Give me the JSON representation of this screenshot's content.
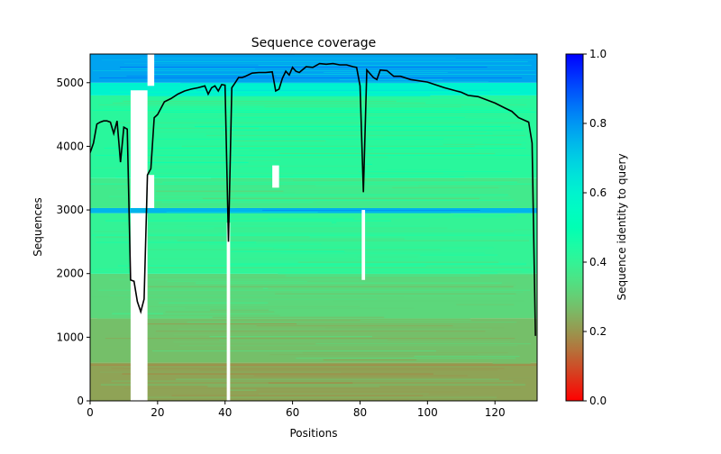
{
  "chart_data": {
    "type": "heatmap",
    "title": "Sequence coverage",
    "xlabel": "Positions",
    "ylabel": "Sequences",
    "xlim": [
      0,
      132.5
    ],
    "ylim": [
      0,
      5450
    ],
    "xticks": [
      0,
      20,
      40,
      60,
      80,
      100,
      120
    ],
    "yticks": [
      0,
      1000,
      2000,
      3000,
      4000,
      5000
    ],
    "colorbar": {
      "label": "Sequence identity to query",
      "range": [
        0,
        1
      ],
      "ticks": [
        "0.0",
        "0.2",
        "0.4",
        "0.6",
        "0.8",
        "1.0"
      ],
      "colormap": "rainbow_r"
    },
    "identity_bands": [
      {
        "y0": 0,
        "y1": 600,
        "identity": 0.22
      },
      {
        "y0": 600,
        "y1": 1300,
        "identity": 0.27
      },
      {
        "y0": 1300,
        "y1": 2000,
        "identity": 0.32
      },
      {
        "y0": 2000,
        "y1": 2950,
        "identity": 0.4
      },
      {
        "y0": 2950,
        "y1": 3030,
        "identity": 0.75
      },
      {
        "y0": 3030,
        "y1": 3500,
        "identity": 0.37
      },
      {
        "y0": 3500,
        "y1": 4800,
        "identity": 0.42
      },
      {
        "y0": 4800,
        "y1": 5000,
        "identity": 0.6
      },
      {
        "y0": 5000,
        "y1": 5450,
        "identity": 0.78
      }
    ],
    "coverage_line": {
      "color": "#000000",
      "x": [
        0,
        1,
        2,
        3,
        4,
        5,
        6,
        7,
        8,
        9,
        10,
        11,
        12,
        13,
        14,
        15,
        16,
        17,
        18,
        19,
        20,
        22,
        24,
        26,
        28,
        30,
        32,
        34,
        35,
        36,
        37,
        38,
        39,
        40,
        41,
        42,
        43,
        44,
        45,
        46,
        48,
        50,
        52,
        54,
        55,
        56,
        57,
        58,
        59,
        60,
        61,
        62,
        64,
        66,
        68,
        70,
        72,
        74,
        76,
        78,
        79,
        80,
        81,
        82,
        84,
        85,
        86,
        88,
        90,
        92,
        95,
        100,
        105,
        110,
        112,
        115,
        120,
        123,
        125,
        126,
        127,
        130,
        131,
        132
      ],
      "y": [
        3900,
        4050,
        4350,
        4380,
        4400,
        4400,
        4380,
        4200,
        4400,
        3750,
        4300,
        4270,
        1900,
        1880,
        1560,
        1400,
        1600,
        3550,
        3650,
        4450,
        4500,
        4700,
        4750,
        4820,
        4870,
        4900,
        4920,
        4950,
        4820,
        4920,
        4950,
        4870,
        4970,
        4960,
        2500,
        4920,
        5000,
        5080,
        5080,
        5100,
        5150,
        5160,
        5160,
        5170,
        4870,
        4900,
        5070,
        5180,
        5120,
        5240,
        5180,
        5160,
        5250,
        5240,
        5300,
        5290,
        5300,
        5280,
        5280,
        5250,
        5240,
        4950,
        3280,
        5200,
        5080,
        5050,
        5200,
        5190,
        5100,
        5100,
        5050,
        5010,
        4920,
        4850,
        4800,
        4780,
        4680,
        4600,
        4550,
        4500,
        4450,
        4380,
        4050,
        1020
      ]
    },
    "gaps": [
      {
        "x0": 12,
        "x1": 17,
        "y0": 0,
        "y1": 2950
      },
      {
        "x0": 12,
        "x1": 17,
        "y0": 3030,
        "y1": 4880
      },
      {
        "x0": 17,
        "x1": 19,
        "y0": 4950,
        "y1": 5450
      },
      {
        "x0": 17,
        "x1": 19,
        "y0": 3030,
        "y1": 3550
      },
      {
        "x0": 40.5,
        "x1": 41.5,
        "y0": 0,
        "y1": 2800
      },
      {
        "x0": 54,
        "x1": 56,
        "y0": 3350,
        "y1": 3700
      },
      {
        "x0": 80.5,
        "x1": 81.5,
        "y0": 1900,
        "y1": 3000
      }
    ]
  }
}
